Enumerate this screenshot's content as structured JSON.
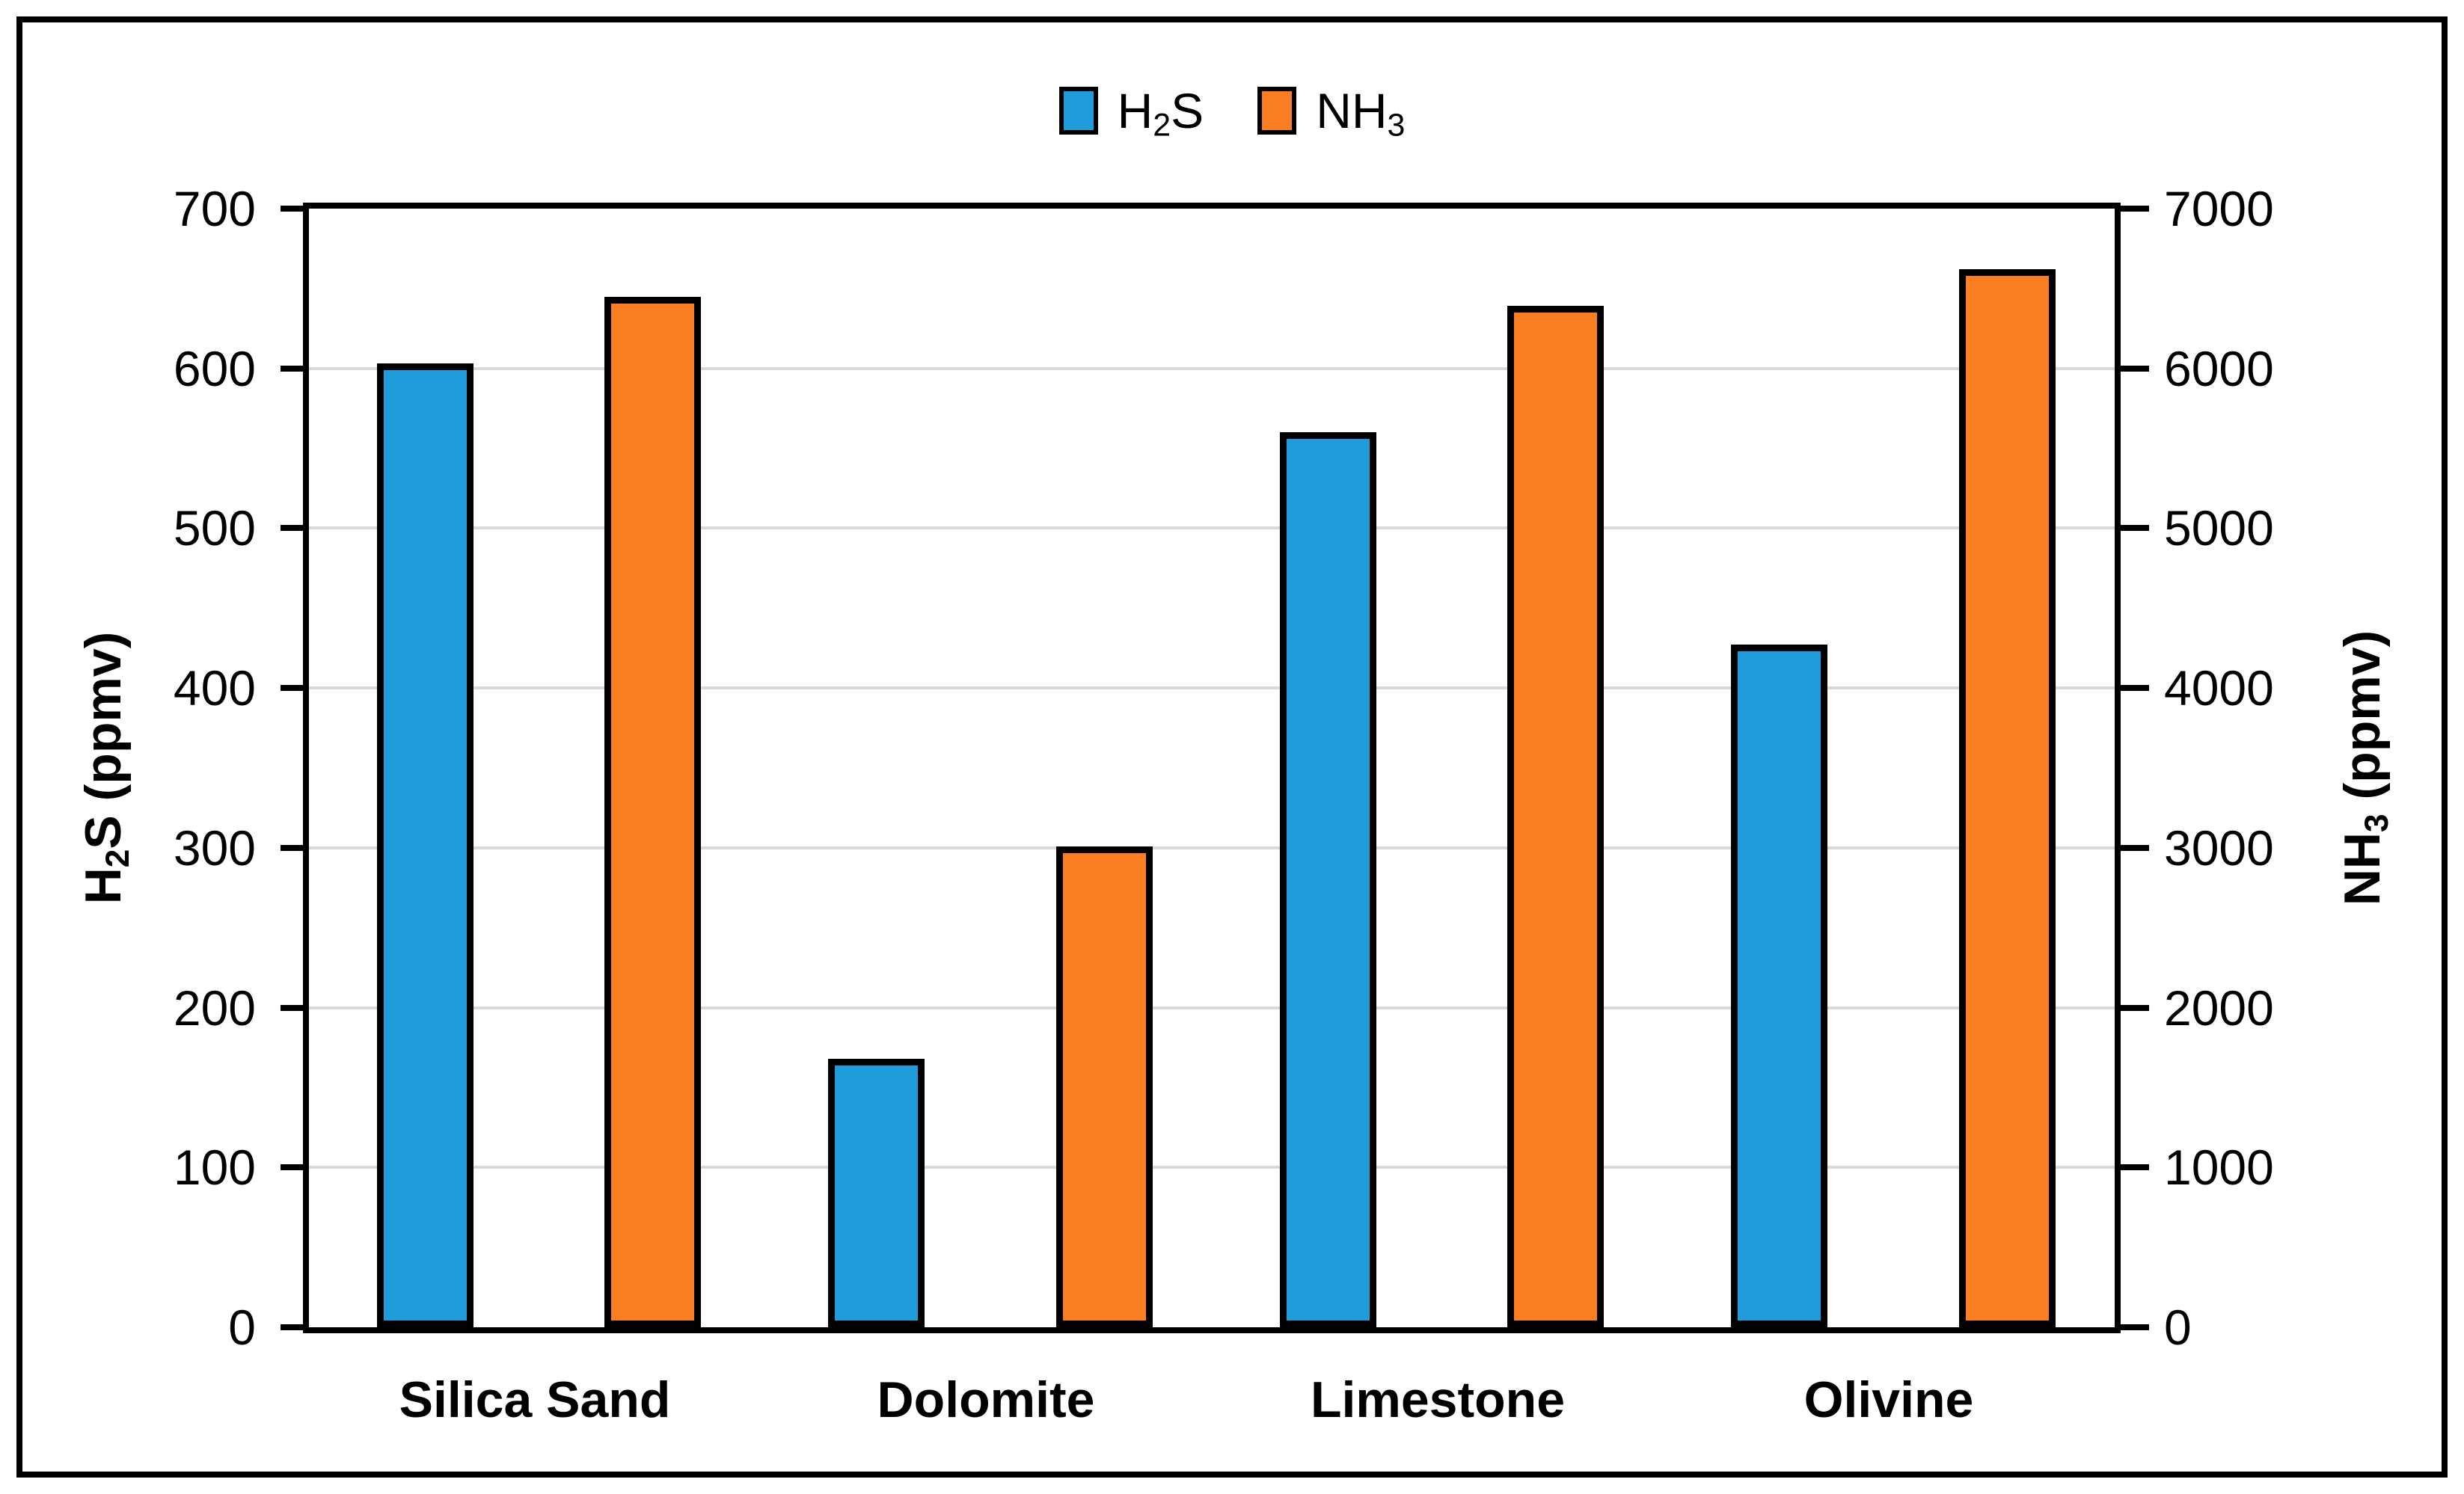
{
  "styling": {
    "background": "#ffffff",
    "frame_color": "#000000",
    "gridline_color": "#d9d9d9",
    "bar_border_color": "#000000",
    "h2s_color": "#1f9cd9",
    "nh3_color": "#fb7e23"
  },
  "legend": {
    "position": "top-center",
    "items": [
      "H2S",
      "NH3"
    ]
  },
  "chart_data": {
    "type": "bar",
    "categories": [
      "Silica Sand",
      "Dolomite",
      "Limestone",
      "Olivine"
    ],
    "series": [
      {
        "name": "H2S",
        "label_pre": "H",
        "label_sub": "2",
        "label_post": "S",
        "axis": "left",
        "color": "#1f9cd9",
        "values": [
          603,
          168,
          560,
          427
        ]
      },
      {
        "name": "NH3",
        "label_pre": "NH",
        "label_sub": "3",
        "label_post": "",
        "axis": "right",
        "color": "#fb7e23",
        "values": [
          6450,
          3010,
          6390,
          6620
        ]
      }
    ],
    "left_axis": {
      "title": "H2S (ppmv)",
      "title_pre": "H",
      "title_sub": "2",
      "title_post": "S (ppmv)",
      "min": 0,
      "max": 700,
      "step": 100,
      "tick_labels": [
        "0",
        "100",
        "200",
        "300",
        "400",
        "500",
        "600",
        "700"
      ]
    },
    "right_axis": {
      "title": "NH3 (ppmv)",
      "title_pre": "NH",
      "title_sub": "3",
      "title_post": " (ppmv)",
      "min": 0,
      "max": 7000,
      "step": 1000,
      "tick_labels": [
        "0",
        "1000",
        "2000",
        "3000",
        "4000",
        "5000",
        "6000",
        "7000"
      ]
    },
    "grid": true,
    "legend_position": "top"
  }
}
